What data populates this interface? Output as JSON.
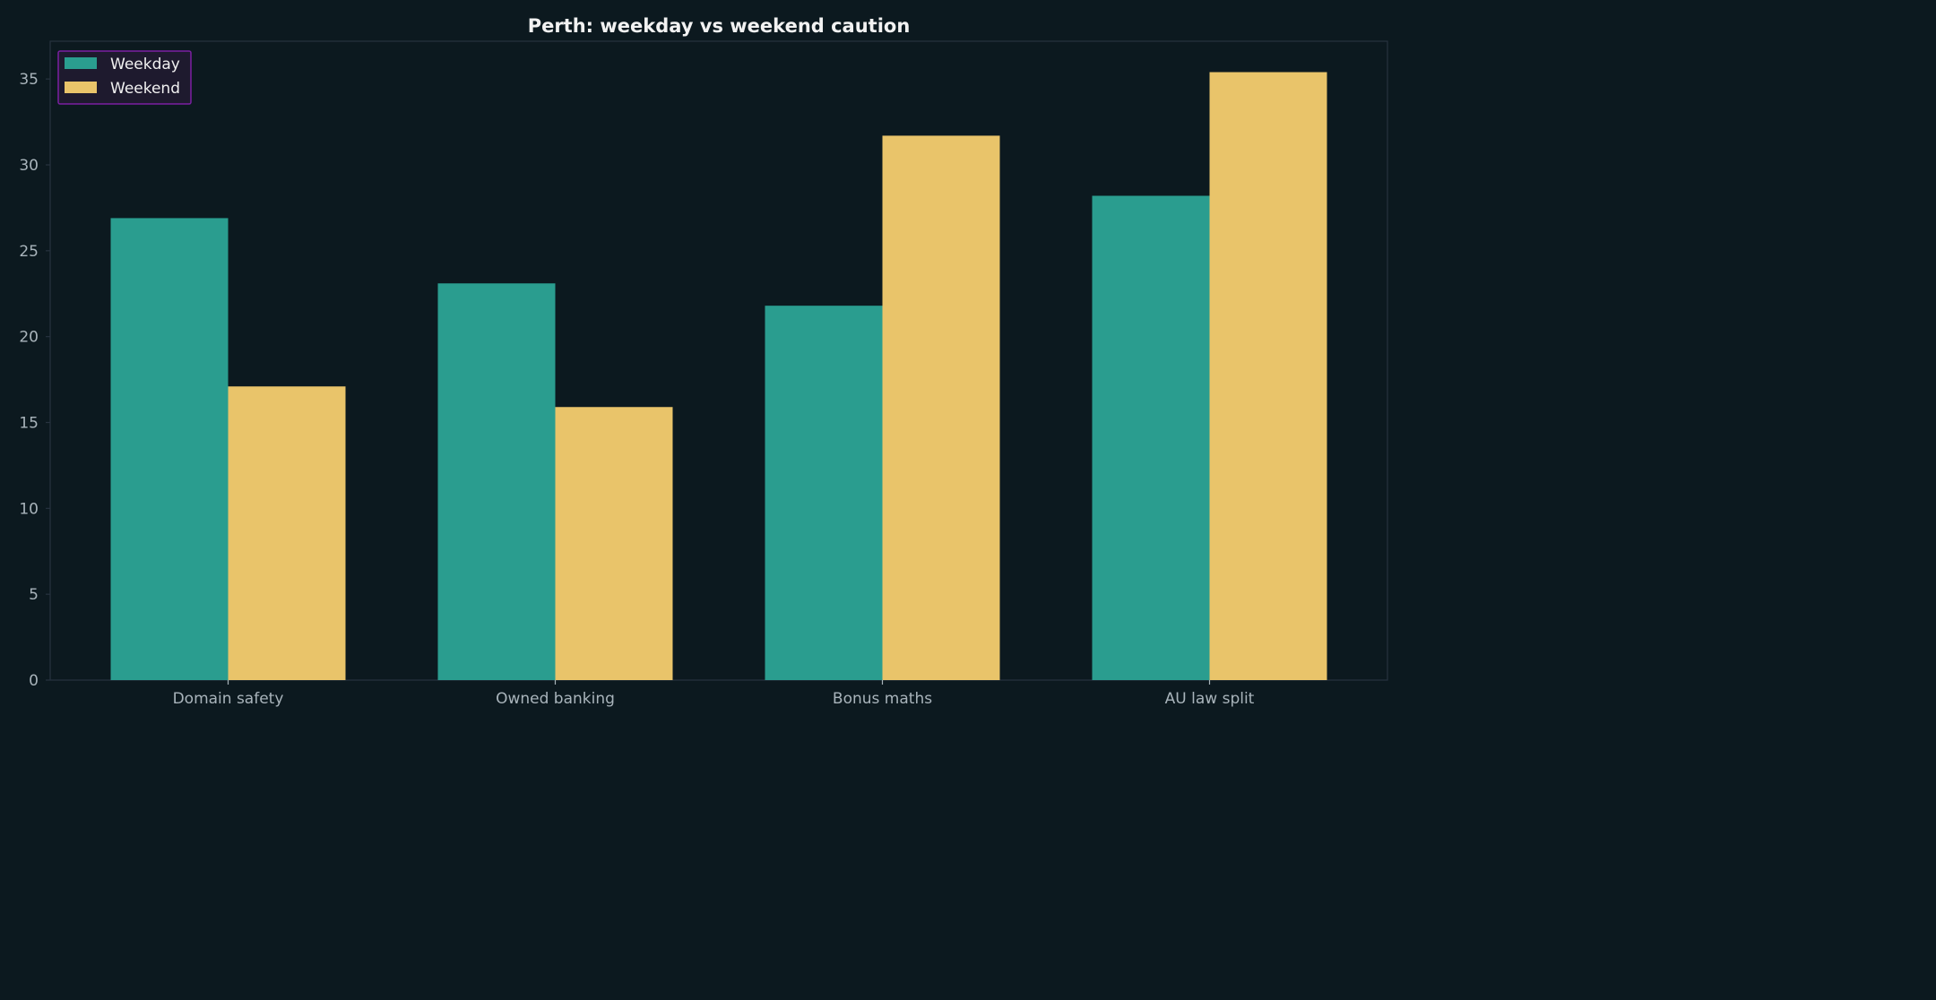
{
  "chart_data": {
    "type": "bar",
    "title": "Perth: weekday vs weekend caution",
    "xlabel": "",
    "ylabel": "",
    "categories": [
      "Domain safety",
      "Owned banking",
      "Bonus maths",
      "AU law split"
    ],
    "series": [
      {
        "name": "Weekday",
        "values": [
          26.9,
          23.1,
          21.8,
          28.2
        ],
        "color": "#2a9d8f"
      },
      {
        "name": "Weekend",
        "values": [
          17.1,
          15.9,
          31.7,
          35.4
        ],
        "color": "#e9c46a"
      }
    ],
    "ylim": [
      0,
      37.2
    ],
    "yticks": [
      0,
      5,
      10,
      15,
      20,
      25,
      30,
      35
    ],
    "grid": false,
    "legend_position": "top-left"
  },
  "colors": {
    "background": "#0c191f",
    "axes_frame": "#27323f",
    "tick_text": "#a9b4bb",
    "title_text": "#f2f2f2",
    "legend_bg": "#1e1a2e",
    "legend_border": "#7b1fa2"
  }
}
